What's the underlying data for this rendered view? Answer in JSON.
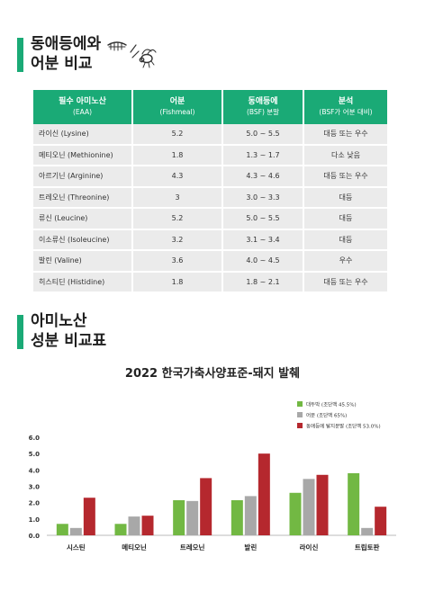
{
  "section1": {
    "title_line1": "동애등에와",
    "title_line2": "어분 비교"
  },
  "table": {
    "headers": [
      {
        "main": "필수 아미노산",
        "sub": "(EAA)"
      },
      {
        "main": "어분",
        "sub": "(Fishmeal)"
      },
      {
        "main": "동애등에",
        "sub": "(BSF) 분말"
      },
      {
        "main": "분석",
        "sub": "(BSF가 어분 대비)"
      }
    ],
    "rows": [
      [
        "라이신 (Lysine)",
        "5.2",
        "5.0 ~ 5.5",
        "대등 또는 우수"
      ],
      [
        "메티오닌 (Methionine)",
        "1.8",
        "1.3 ~ 1.7",
        "다소 낮음"
      ],
      [
        "아르기닌 (Arginine)",
        "4.3",
        "4.3 ~ 4.6",
        "대등 또는 우수"
      ],
      [
        "트레오닌 (Threonine)",
        "3",
        "3.0 ~ 3.3",
        "대등"
      ],
      [
        "류신 (Leucine)",
        "5.2",
        "5.0 ~ 5.5",
        "대등"
      ],
      [
        "이소류신 (Isoleucine)",
        "3.2",
        "3.1 ~ 3.4",
        "대등"
      ],
      [
        "발린 (Valine)",
        "3.6",
        "4.0 ~ 4.5",
        "우수"
      ],
      [
        "히스티딘 (Histidine)",
        "1.8",
        "1.8 ~ 2.1",
        "대등 또는 우수"
      ]
    ]
  },
  "section2": {
    "title_line1": "아미노산",
    "title_line2": "성분 비교표"
  },
  "chart_data": {
    "type": "bar",
    "title": "2022 한국가축사양표준-돼지 발췌",
    "categories": [
      "시스틴",
      "메티오닌",
      "트레오닌",
      "발린",
      "라이신",
      "트립토판"
    ],
    "series": [
      {
        "name": "대두박 (조단백 45.5%)",
        "color": "#72b843",
        "values": [
          0.7,
          0.7,
          2.15,
          2.15,
          2.6,
          3.8
        ]
      },
      {
        "name": "어분 (조단백 65%)",
        "color": "#a8a8a8",
        "values": [
          0.45,
          1.15,
          2.1,
          2.4,
          3.45,
          0.45
        ]
      },
      {
        "name": "동애등에 탈지분말 (조단백 53.0%)",
        "color": "#b5282e",
        "values": [
          2.3,
          1.2,
          3.5,
          5.0,
          3.7,
          1.75
        ]
      }
    ],
    "yticks": [
      "0.0",
      "1.0",
      "2.0",
      "3.0",
      "4.0",
      "5.0",
      "6.0"
    ],
    "ylim": [
      0,
      6
    ],
    "grid": false,
    "legend": "top-right"
  }
}
